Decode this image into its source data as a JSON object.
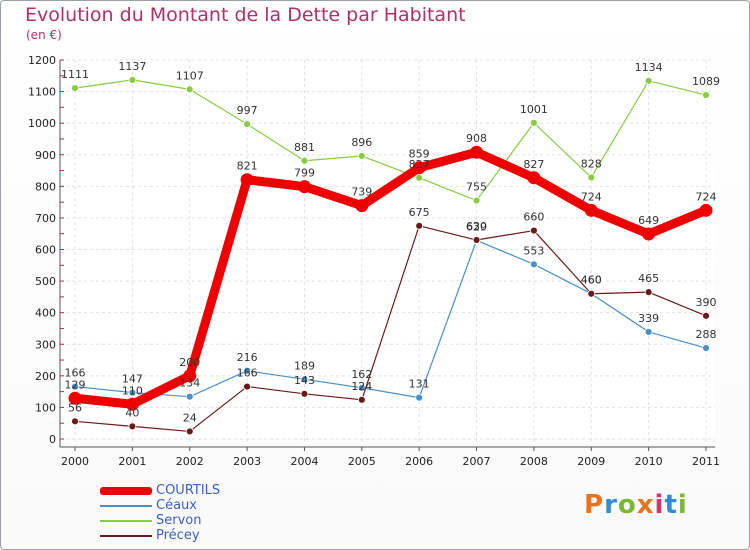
{
  "header": {
    "title": "Evolution du Montant de la Dette par Habitant",
    "subtitle": "(en €)"
  },
  "logo": {
    "text": "Proxiti",
    "colors": [
      "#e8731e",
      "#2f8ed6",
      "#7bb833",
      "#e8731e",
      "#d6336c",
      "#2f8ed6",
      "#7bb833"
    ]
  },
  "chart_data": {
    "type": "line",
    "x": [
      "2000",
      "2001",
      "2002",
      "2003",
      "2004",
      "2005",
      "2006",
      "2007",
      "2008",
      "2009",
      "2010",
      "2011"
    ],
    "ylim": [
      0,
      1200
    ],
    "yticks": [
      0,
      100,
      200,
      300,
      400,
      500,
      600,
      700,
      800,
      900,
      1000,
      1100,
      1200
    ],
    "grid": true,
    "legend_position": "bottom-left",
    "series": [
      {
        "name": "COURTILS",
        "color": "#ee0000",
        "values": [
          129,
          110,
          200,
          821,
          799,
          739,
          859,
          908,
          827,
          724,
          649,
          724
        ]
      },
      {
        "name": "Céaux",
        "color": "#4a90c8",
        "values": [
          166,
          147,
          134,
          216,
          189,
          162,
          131,
          629,
          553,
          460,
          339,
          288
        ]
      },
      {
        "name": "Servon",
        "color": "#88cc44",
        "values": [
          1111,
          1137,
          1107,
          997,
          881,
          896,
          827,
          755,
          1001,
          828,
          1134,
          1089
        ]
      },
      {
        "name": "Précey",
        "color": "#6b1a1a",
        "values": [
          56,
          40,
          24,
          166,
          143,
          124,
          675,
          630,
          660,
          460,
          465,
          390
        ]
      }
    ]
  }
}
